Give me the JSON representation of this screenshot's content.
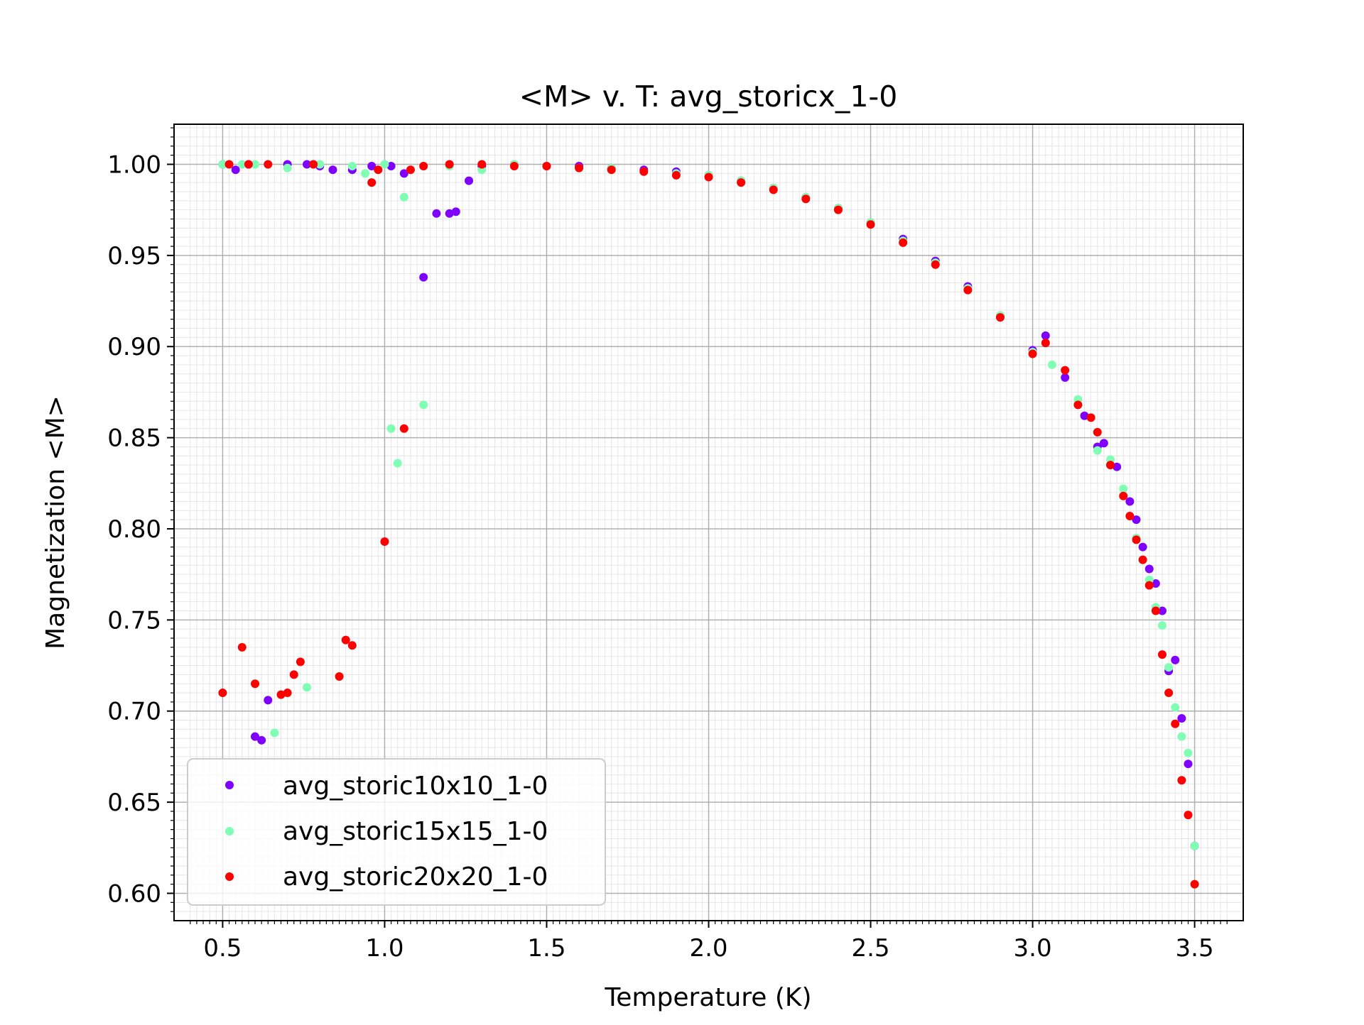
{
  "chart_data": {
    "type": "scatter",
    "title": "<M> v. T: avg_storicx_1-0",
    "xlabel": "Temperature (K)",
    "ylabel": "Magnetization <M>",
    "xlim": [
      0.35,
      3.65
    ],
    "ylim": [
      0.585,
      1.022
    ],
    "xticks": [
      0.5,
      1.0,
      1.5,
      2.0,
      2.5,
      3.0,
      3.5
    ],
    "xtick_labels": [
      "0.5",
      "1.0",
      "1.5",
      "2.0",
      "2.5",
      "3.0",
      "3.5"
    ],
    "yticks": [
      0.6,
      0.65,
      0.7,
      0.75,
      0.8,
      0.85,
      0.9,
      0.95,
      1.0
    ],
    "ytick_labels": [
      "0.60",
      "0.65",
      "0.70",
      "0.75",
      "0.80",
      "0.85",
      "0.90",
      "0.95",
      "1.00"
    ],
    "grid": "major and minor",
    "legend_position": "bottom-left",
    "series": [
      {
        "name": "avg_storic10x10_1-0",
        "color": "#8000ff",
        "points": [
          [
            0.5,
            1.0
          ],
          [
            0.54,
            0.997
          ],
          [
            0.58,
            1.0
          ],
          [
            0.6,
            0.686
          ],
          [
            0.62,
            0.684
          ],
          [
            0.64,
            0.706
          ],
          [
            0.7,
            1.0
          ],
          [
            0.76,
            1.0
          ],
          [
            0.8,
            0.999
          ],
          [
            0.84,
            0.997
          ],
          [
            0.9,
            0.997
          ],
          [
            0.96,
            0.999
          ],
          [
            1.02,
            0.999
          ],
          [
            1.06,
            0.995
          ],
          [
            1.12,
            0.938
          ],
          [
            1.16,
            0.973
          ],
          [
            1.2,
            0.973
          ],
          [
            1.22,
            0.974
          ],
          [
            1.26,
            0.991
          ],
          [
            1.3,
            0.999
          ],
          [
            1.4,
            1.0
          ],
          [
            1.5,
            0.999
          ],
          [
            1.6,
            0.999
          ],
          [
            1.7,
            0.998
          ],
          [
            1.8,
            0.997
          ],
          [
            1.9,
            0.996
          ],
          [
            2.0,
            0.994
          ],
          [
            2.1,
            0.991
          ],
          [
            2.2,
            0.987
          ],
          [
            2.3,
            0.982
          ],
          [
            2.4,
            0.976
          ],
          [
            2.5,
            0.968
          ],
          [
            2.6,
            0.959
          ],
          [
            2.7,
            0.947
          ],
          [
            2.8,
            0.933
          ],
          [
            2.9,
            0.917
          ],
          [
            3.0,
            0.898
          ],
          [
            3.04,
            0.906
          ],
          [
            3.1,
            0.883
          ],
          [
            3.16,
            0.862
          ],
          [
            3.2,
            0.845
          ],
          [
            3.22,
            0.847
          ],
          [
            3.26,
            0.834
          ],
          [
            3.3,
            0.815
          ],
          [
            3.32,
            0.805
          ],
          [
            3.34,
            0.79
          ],
          [
            3.36,
            0.778
          ],
          [
            3.38,
            0.77
          ],
          [
            3.4,
            0.755
          ],
          [
            3.42,
            0.722
          ],
          [
            3.44,
            0.728
          ],
          [
            3.46,
            0.696
          ],
          [
            3.48,
            0.671
          ],
          [
            3.5,
            0.626
          ]
        ]
      },
      {
        "name": "avg_storic15x15_1-0",
        "color": "#80ffb4",
        "points": [
          [
            0.5,
            1.0
          ],
          [
            0.56,
            1.0
          ],
          [
            0.6,
            1.0
          ],
          [
            0.66,
            0.688
          ],
          [
            0.7,
            0.998
          ],
          [
            0.76,
            0.713
          ],
          [
            0.8,
            1.0
          ],
          [
            0.9,
            0.999
          ],
          [
            0.94,
            0.995
          ],
          [
            1.0,
            1.0
          ],
          [
            1.02,
            0.855
          ],
          [
            1.04,
            0.836
          ],
          [
            1.06,
            0.982
          ],
          [
            1.12,
            0.868
          ],
          [
            1.2,
            0.999
          ],
          [
            1.3,
            0.997
          ],
          [
            1.4,
            1.0
          ],
          [
            1.5,
            0.999
          ],
          [
            1.6,
            0.998
          ],
          [
            1.7,
            0.998
          ],
          [
            1.8,
            0.996
          ],
          [
            1.9,
            0.995
          ],
          [
            2.0,
            0.994
          ],
          [
            2.1,
            0.991
          ],
          [
            2.2,
            0.987
          ],
          [
            2.3,
            0.982
          ],
          [
            2.4,
            0.976
          ],
          [
            2.5,
            0.968
          ],
          [
            2.6,
            0.958
          ],
          [
            2.7,
            0.946
          ],
          [
            2.8,
            0.932
          ],
          [
            2.9,
            0.917
          ],
          [
            3.0,
            0.897
          ],
          [
            3.06,
            0.89
          ],
          [
            3.14,
            0.871
          ],
          [
            3.2,
            0.843
          ],
          [
            3.24,
            0.838
          ],
          [
            3.28,
            0.822
          ],
          [
            3.32,
            0.795
          ],
          [
            3.36,
            0.772
          ],
          [
            3.38,
            0.757
          ],
          [
            3.4,
            0.747
          ],
          [
            3.42,
            0.724
          ],
          [
            3.44,
            0.702
          ],
          [
            3.46,
            0.686
          ],
          [
            3.48,
            0.677
          ],
          [
            3.5,
            0.626
          ]
        ]
      },
      {
        "name": "avg_storic20x20_1-0",
        "color": "#ff0000",
        "points": [
          [
            0.5,
            0.71
          ],
          [
            0.52,
            1.0
          ],
          [
            0.56,
            0.735
          ],
          [
            0.58,
            1.0
          ],
          [
            0.6,
            0.715
          ],
          [
            0.64,
            1.0
          ],
          [
            0.68,
            0.709
          ],
          [
            0.7,
            0.71
          ],
          [
            0.72,
            0.72
          ],
          [
            0.74,
            0.727
          ],
          [
            0.78,
            1.0
          ],
          [
            0.86,
            0.719
          ],
          [
            0.88,
            0.739
          ],
          [
            0.9,
            0.736
          ],
          [
            0.96,
            0.99
          ],
          [
            0.98,
            0.997
          ],
          [
            1.0,
            0.793
          ],
          [
            1.06,
            0.855
          ],
          [
            1.08,
            0.997
          ],
          [
            1.12,
            0.999
          ],
          [
            1.2,
            1.0
          ],
          [
            1.3,
            1.0
          ],
          [
            1.4,
            0.999
          ],
          [
            1.5,
            0.999
          ],
          [
            1.6,
            0.998
          ],
          [
            1.7,
            0.997
          ],
          [
            1.8,
            0.996
          ],
          [
            1.9,
            0.994
          ],
          [
            2.0,
            0.993
          ],
          [
            2.1,
            0.99
          ],
          [
            2.2,
            0.986
          ],
          [
            2.3,
            0.981
          ],
          [
            2.4,
            0.975
          ],
          [
            2.5,
            0.967
          ],
          [
            2.6,
            0.957
          ],
          [
            2.7,
            0.945
          ],
          [
            2.8,
            0.931
          ],
          [
            2.9,
            0.916
          ],
          [
            3.0,
            0.896
          ],
          [
            3.04,
            0.902
          ],
          [
            3.1,
            0.887
          ],
          [
            3.14,
            0.868
          ],
          [
            3.18,
            0.861
          ],
          [
            3.2,
            0.853
          ],
          [
            3.24,
            0.835
          ],
          [
            3.28,
            0.818
          ],
          [
            3.3,
            0.807
          ],
          [
            3.32,
            0.794
          ],
          [
            3.34,
            0.783
          ],
          [
            3.36,
            0.769
          ],
          [
            3.38,
            0.755
          ],
          [
            3.4,
            0.731
          ],
          [
            3.42,
            0.71
          ],
          [
            3.44,
            0.693
          ],
          [
            3.46,
            0.662
          ],
          [
            3.48,
            0.643
          ],
          [
            3.5,
            0.605
          ]
        ]
      }
    ]
  }
}
